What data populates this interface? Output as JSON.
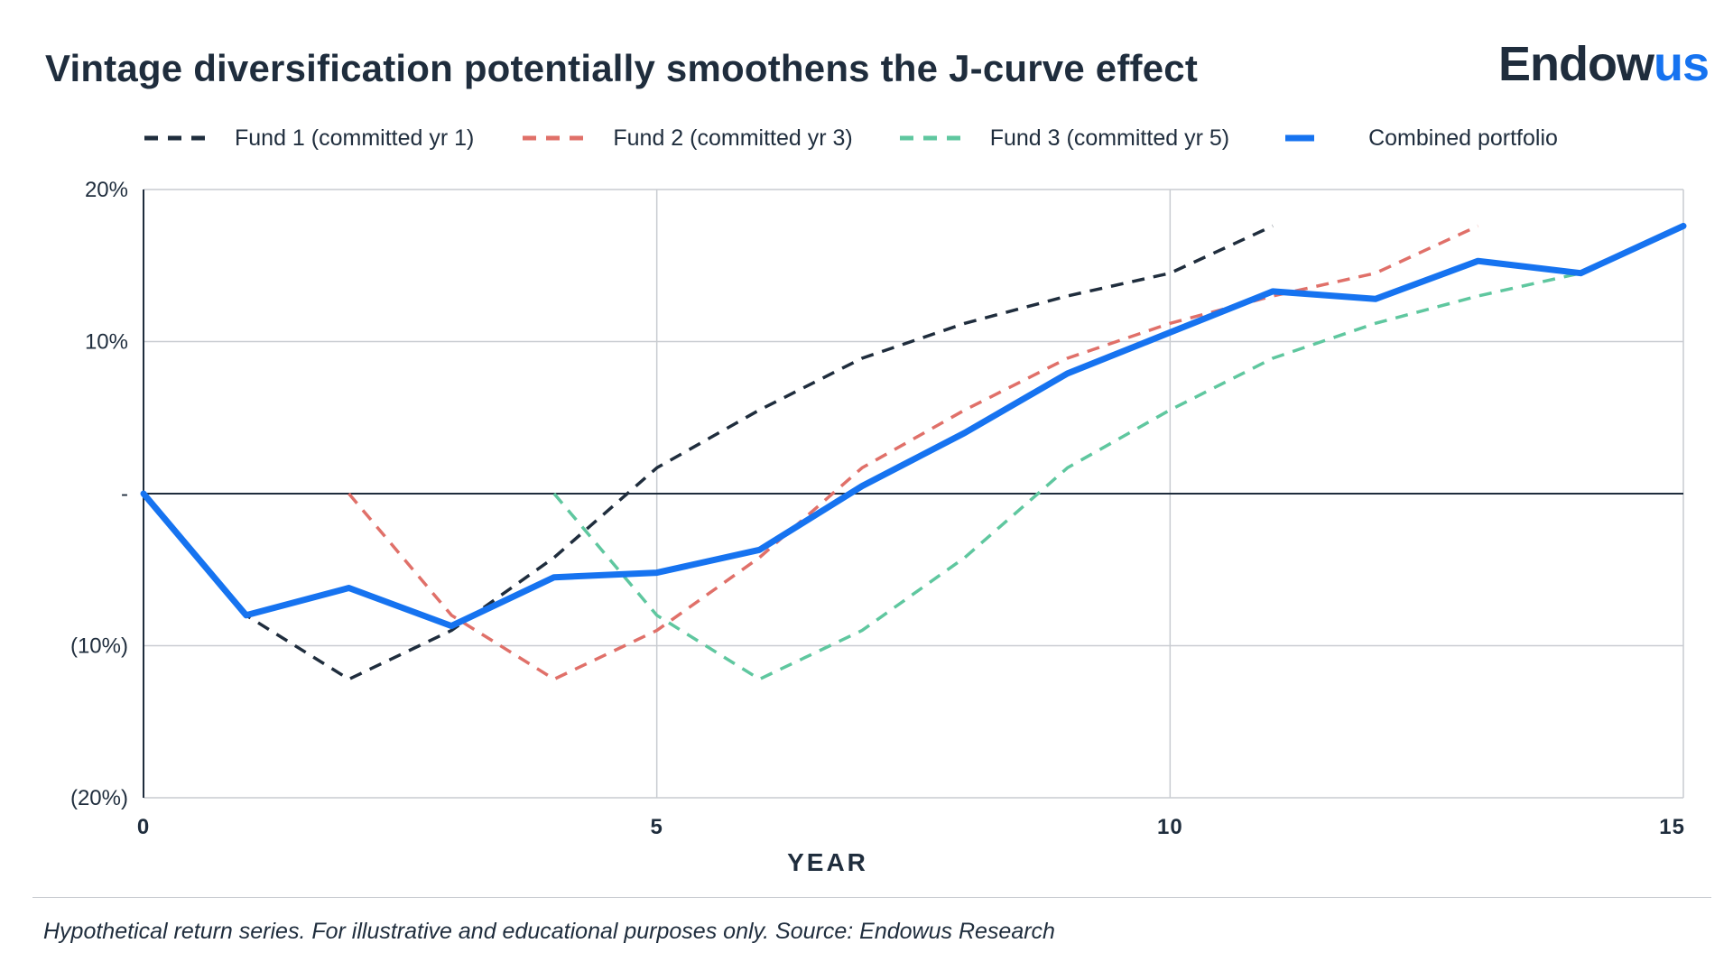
{
  "header": {
    "title": "Vintage diversification potentially smoothens the J-curve effect",
    "logo_part1": "Endow",
    "logo_part2": "us"
  },
  "colors": {
    "text": "#1f2d3d",
    "fund1": "#1f2d3d",
    "fund2": "#e07069",
    "fund3": "#5fc79f",
    "combined": "#1673f0",
    "grid": "#c9ccd1"
  },
  "footnote": "Hypothetical return series. For illustrative and educational purposes only. Source: Endowus Research",
  "chart_data": {
    "type": "line",
    "title": "Vintage diversification potentially smoothens the J-curve effect",
    "xlabel": "YEAR",
    "ylabel": "",
    "xlim": [
      0,
      15
    ],
    "ylim": [
      -20,
      20
    ],
    "x_ticks": [
      0,
      5,
      10,
      15
    ],
    "x_tick_labels": [
      "0",
      "5",
      "10",
      "15"
    ],
    "y_ticks": [
      20,
      10,
      0,
      -10,
      -20
    ],
    "y_tick_labels": [
      "20%",
      "10%",
      "-",
      "(10%)",
      "(20%)"
    ],
    "grid": true,
    "legend_position": "top",
    "series": [
      {
        "name": "Fund 1 (committed yr 1)",
        "style": "dashed",
        "color": "#1f2d3d",
        "x": [
          0,
          1,
          2,
          3,
          4,
          5,
          6,
          7,
          8,
          9,
          10,
          11
        ],
        "y": [
          0,
          -8,
          -12.2,
          -9,
          -4.2,
          1.7,
          5.5,
          8.9,
          11.2,
          13,
          14.5,
          17.6
        ]
      },
      {
        "name": "Fund 2 (committed yr 3)",
        "style": "dashed",
        "color": "#e07069",
        "x": [
          2,
          3,
          4,
          5,
          6,
          7,
          8,
          9,
          10,
          11,
          12,
          13
        ],
        "y": [
          0,
          -8,
          -12.2,
          -9,
          -4.2,
          1.7,
          5.5,
          8.9,
          11.2,
          13,
          14.5,
          17.6
        ]
      },
      {
        "name": "Fund 3 (committed yr 5)",
        "style": "dashed",
        "color": "#5fc79f",
        "x": [
          4,
          5,
          6,
          7,
          8,
          9,
          10,
          11,
          12,
          13,
          14
        ],
        "y": [
          0,
          -8,
          -12.2,
          -9,
          -4.2,
          1.7,
          5.5,
          8.9,
          11.2,
          13,
          14.5
        ]
      },
      {
        "name": "Combined portfolio",
        "style": "solid",
        "color": "#1673f0",
        "x": [
          0,
          1,
          2,
          3,
          4,
          5,
          6,
          7,
          8,
          9,
          10,
          11,
          12,
          13,
          14,
          15
        ],
        "y": [
          0,
          -8,
          -6.2,
          -8.7,
          -5.5,
          -5.2,
          -3.7,
          0.5,
          4,
          7.9,
          10.6,
          13.3,
          12.8,
          15.3,
          14.5,
          17.6
        ]
      }
    ]
  }
}
